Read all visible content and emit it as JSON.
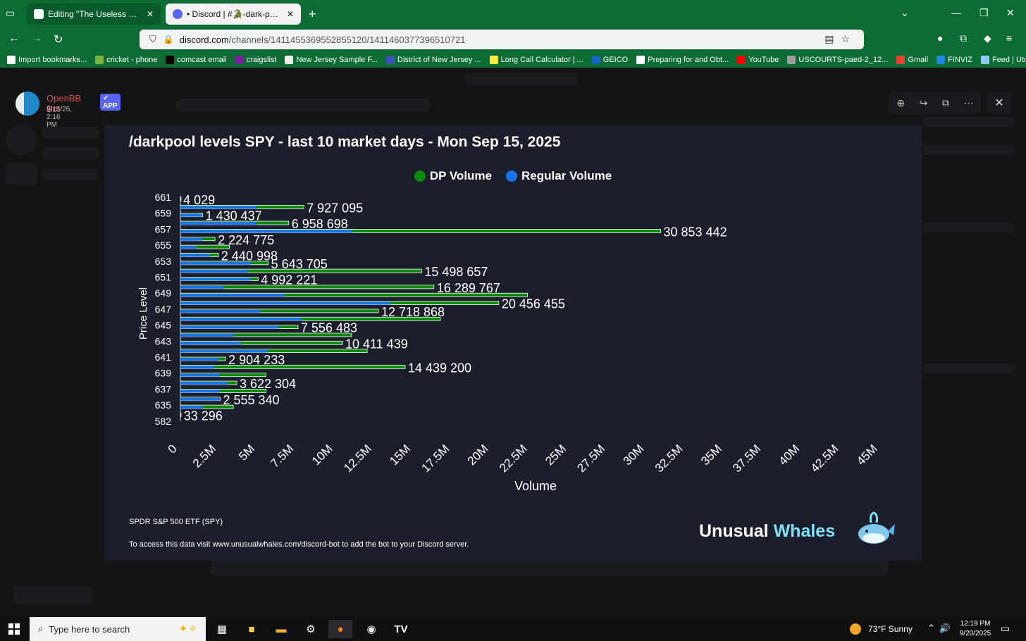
{
  "browser": {
    "tabs": [
      {
        "title": "Editing \"The Useless SPY Report\"",
        "close": "✕"
      },
      {
        "title": "• Discord | #🐊-dark-pool | The",
        "close": "✕"
      }
    ],
    "new_tab": "+",
    "url_domain": "discord.com",
    "url_path": "/channels/1411455369552855120/1411460377396510721",
    "bookmarks": [
      {
        "label": "Import bookmarks...",
        "color": "#ffffff"
      },
      {
        "label": "cricket - phone",
        "color": "#7cb342"
      },
      {
        "label": "comcast email",
        "color": "#000000"
      },
      {
        "label": "craigslist",
        "color": "#7b1fa2"
      },
      {
        "label": "New Jersey Sample F...",
        "color": "#eeeeee"
      },
      {
        "label": "District of New Jersey ...",
        "color": "#3f51b5"
      },
      {
        "label": "Long Call Calculator | ...",
        "color": "#ffeb3b"
      },
      {
        "label": "GEICO",
        "color": "#1565c0"
      },
      {
        "label": "Preparing for and Obt...",
        "color": "#ffffff"
      },
      {
        "label": "YouTube",
        "color": "#ff0000"
      },
      {
        "label": "USCOURTS-paed-2_12...",
        "color": "#9e9e9e"
      },
      {
        "label": "Gmail",
        "color": "#ea4335"
      },
      {
        "label": "FINVIZ",
        "color": "#1e88e5"
      },
      {
        "label": "Feed | Utradea",
        "color": "#90caf9"
      }
    ]
  },
  "message": {
    "bot_name": "OpenBB Bot",
    "badge": "✓ APP",
    "timestamp": "9/15/25, 2:16 PM"
  },
  "chart_data": {
    "type": "bar",
    "orientation": "horizontal",
    "title": "/darkpool levels SPY - last 10 market days - Mon Sep 15, 2025",
    "xlabel": "Volume",
    "ylabel": "Price Level",
    "xlim": [
      0,
      45000000
    ],
    "x_ticks": [
      "0",
      "2.5M",
      "5M",
      "7.5M",
      "10M",
      "12.5M",
      "15M",
      "17.5M",
      "20M",
      "22.5M",
      "25M",
      "27.5M",
      "30M",
      "32.5M",
      "35M",
      "37.5M",
      "40M",
      "42.5M",
      "45M"
    ],
    "y_ticks": [
      "661",
      "659",
      "657",
      "655",
      "653",
      "651",
      "649",
      "647",
      "645",
      "643",
      "641",
      "639",
      "637",
      "635",
      "582"
    ],
    "legend": {
      "position": "top-center",
      "items": [
        {
          "name": "DP Volume",
          "color": "#0a8a0a"
        },
        {
          "name": "Regular Volume",
          "color": "#1a73e8"
        }
      ]
    },
    "rows": [
      {
        "label": "4 029",
        "total": 4029,
        "regular": 0
      },
      {
        "label": "7 927 095",
        "total": 7927095,
        "regular": 4900000
      },
      {
        "label": "1 430 437",
        "total": 1430437,
        "regular": 1400000
      },
      {
        "label": "6 958 698",
        "total": 6958698,
        "regular": 4900000
      },
      {
        "label": "30 853 442",
        "total": 30853442,
        "regular": 11000000
      },
      {
        "label": "2 224 775",
        "total": 2224775,
        "regular": 1400000
      },
      {
        "label": "",
        "total": 3150000,
        "regular": 1000000
      },
      {
        "label": "2 440 998",
        "total": 2440998,
        "regular": 1900000
      },
      {
        "label": "5 643 705",
        "total": 5643705,
        "regular": 4500000
      },
      {
        "label": "15 498 657",
        "total": 15498657,
        "regular": 4300000
      },
      {
        "label": "4 992 221",
        "total": 4992221,
        "regular": 4500000
      },
      {
        "label": "16 289 767",
        "total": 16289767,
        "regular": 2800000
      },
      {
        "label": "",
        "total": 22300000,
        "regular": 6700000
      },
      {
        "label": "20 456 455",
        "total": 20456455,
        "regular": 13500000
      },
      {
        "label": "12 718 868",
        "total": 12718868,
        "regular": 5100000
      },
      {
        "label": "",
        "total": 16700000,
        "regular": 7800000
      },
      {
        "label": "7 556 483",
        "total": 7556483,
        "regular": 6300000
      },
      {
        "label": "",
        "total": 11000000,
        "regular": 3400000
      },
      {
        "label": "10 411 439",
        "total": 10411439,
        "regular": 3900000
      },
      {
        "label": "",
        "total": 12000000,
        "regular": 5600000
      },
      {
        "label": "2 904 233",
        "total": 2904233,
        "regular": 2400000
      },
      {
        "label": "14 439 200",
        "total": 14439200,
        "regular": 2200000
      },
      {
        "label": "",
        "total": 5500000,
        "regular": 2500000
      },
      {
        "label": "3 622 304",
        "total": 3622304,
        "regular": 3000000
      },
      {
        "label": "",
        "total": 5500000,
        "regular": 2500000
      },
      {
        "label": "2 555 340",
        "total": 2555340,
        "regular": 2500000
      },
      {
        "label": "",
        "total": 3400000,
        "regular": 1400000
      },
      {
        "label": "33 296",
        "total": 33296,
        "regular": 0
      }
    ]
  },
  "chart_footer": {
    "name": "SPDR S&P 500 ETF (SPY)",
    "note": "To access this data visit www.unusualwhales.com/discord-bot to add the bot to your Discord server.",
    "brand_a": "Unusual",
    "brand_b": "Whales"
  },
  "taskbar": {
    "search_placeholder": "Type here to search",
    "weather": "73°F  Sunny",
    "time": "12:19 PM",
    "date": "9/20/2025"
  }
}
